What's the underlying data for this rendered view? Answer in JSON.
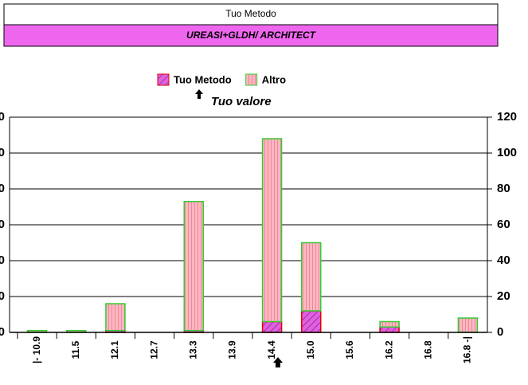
{
  "chart_data": {
    "type": "bar",
    "stacked": true,
    "title": "Tuo Metodo",
    "subtitle": "UREASI+GLDH/ ARCHITECT",
    "annotation": "Tuo valore",
    "categories": [
      "|- 10.9",
      "11.5",
      "12.1",
      "12.7",
      "13.3",
      "13.9",
      "14.4",
      "15.0",
      "15.6",
      "16.2",
      "16.8",
      "16.8 -|"
    ],
    "series": [
      {
        "name": "Tuo Metodo",
        "color": "#e060e0",
        "values": [
          0,
          0,
          1,
          0,
          1,
          0,
          6,
          12,
          0,
          3,
          0,
          0
        ]
      },
      {
        "name": "Altro",
        "color": "#ffb6c1",
        "values": [
          1,
          1,
          15,
          0,
          72,
          0,
          102,
          38,
          0,
          3,
          0,
          8
        ]
      }
    ],
    "ylim": [
      0,
      120
    ],
    "yticks": [
      0,
      20,
      40,
      60,
      80,
      100,
      120
    ],
    "grid": true
  }
}
